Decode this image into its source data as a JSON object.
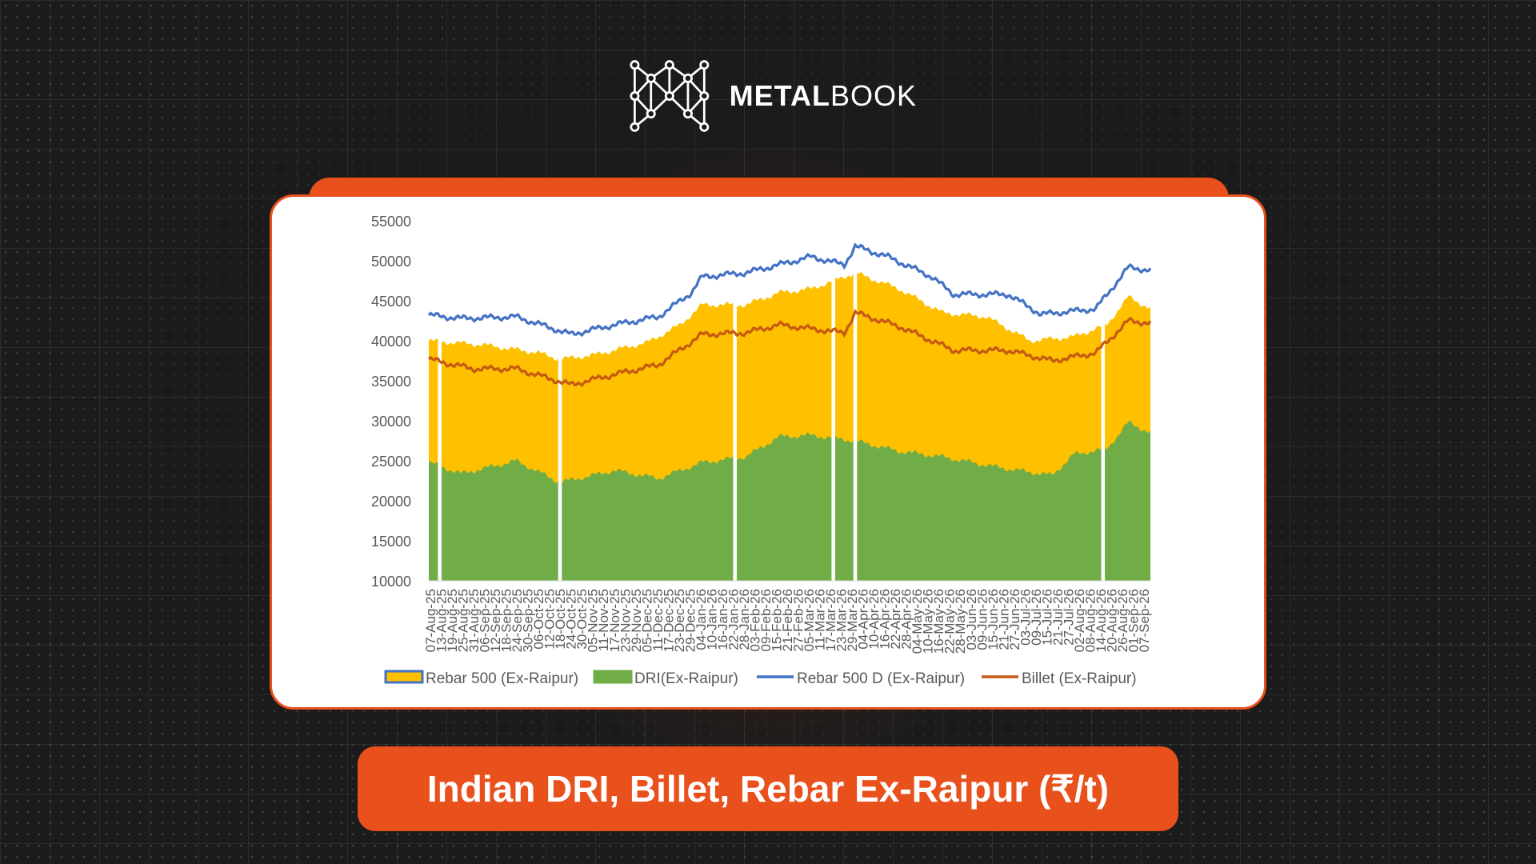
{
  "brand": {
    "name_bold": "METAL",
    "name_regular": "BOOK",
    "logo_icon": "metalbook-network-m-icon"
  },
  "colors": {
    "accent": "#e8501c",
    "rebar_area": "#FFC000",
    "dri_area": "#70AD47",
    "rebar_d_line": "#4472C4",
    "billet_line": "#C55A11"
  },
  "title": "Indian DRI, Billet, Rebar Ex-Raipur (₹/t)",
  "chart_data": {
    "type": "area",
    "x_start": "2025-08-07",
    "x_step_days": 1,
    "y_ticks": [
      "55000",
      "50000",
      "45000",
      "40000",
      "35000",
      "30000",
      "25000",
      "20000",
      "15000",
      "10000"
    ],
    "ylim": [
      10000,
      55000
    ],
    "x_tick_labels": [
      "07-Aug-25",
      "13-Aug-25",
      "19-Aug-25",
      "25-Aug-25",
      "31-Aug-25",
      "06-Sep-25",
      "12-Sep-25",
      "18-Sep-25",
      "24-Sep-25",
      "30-Sep-25",
      "06-Oct-25",
      "12-Oct-25",
      "18-Oct-25",
      "24-Oct-25",
      "30-Oct-25",
      "05-Nov-25",
      "11-Nov-25",
      "17-Nov-25",
      "23-Nov-25",
      "29-Nov-25",
      "05-Dec-25",
      "11-Dec-25",
      "17-Dec-25",
      "23-Dec-25",
      "29-Dec-25",
      "04-Jan-26",
      "10-Jan-26",
      "16-Jan-26",
      "22-Jan-26",
      "28-Jan-26",
      "03-Feb-26",
      "09-Feb-26",
      "15-Feb-26",
      "21-Feb-26",
      "27-Feb-26",
      "05-Mar-26",
      "11-Mar-26",
      "17-Mar-26",
      "23-Mar-26",
      "29-Mar-26",
      "04-Apr-26",
      "10-Apr-26",
      "16-Apr-26",
      "22-Apr-26",
      "28-Apr-26",
      "04-May-26",
      "10-May-26",
      "16-May-26",
      "22-May-26",
      "28-May-26",
      "03-Jun-26",
      "09-Jun-26",
      "15-Jun-26",
      "21-Jun-26",
      "27-Jun-26",
      "03-Jul-26",
      "09-Jul-26",
      "15-Jul-26",
      "21-Jul-26",
      "27-Jul-26",
      "02-Aug-26",
      "08-Aug-26",
      "14-Aug-26",
      "20-Aug-26",
      "26-Aug-26",
      "01-Sep-26",
      "07-Sep-26"
    ],
    "gap_dates": [
      "2025-08-13",
      "2025-10-18",
      "2026-01-22",
      "2026-03-17",
      "2026-03-29",
      "2026-08-12"
    ],
    "legend_position": "bottom",
    "series": [
      {
        "name": "Rebar 500 (Ex-Raipur)",
        "kind": "area",
        "points": [
          [
            "2025-08-07",
            40000
          ],
          [
            "2025-09-06",
            39500
          ],
          [
            "2025-10-06",
            38500
          ],
          [
            "2025-10-18",
            37700
          ],
          [
            "2025-11-05",
            38200
          ],
          [
            "2025-12-05",
            39800
          ],
          [
            "2025-12-23",
            42000
          ],
          [
            "2026-01-04",
            44500
          ],
          [
            "2026-01-28",
            44500
          ],
          [
            "2026-02-15",
            46000
          ],
          [
            "2026-03-05",
            46500
          ],
          [
            "2026-03-29",
            48500
          ],
          [
            "2026-04-22",
            46500
          ],
          [
            "2026-05-16",
            43500
          ],
          [
            "2026-06-09",
            43000
          ],
          [
            "2026-07-03",
            40000
          ],
          [
            "2026-07-27",
            40500
          ],
          [
            "2026-08-14",
            42000
          ],
          [
            "2026-08-26",
            45500
          ],
          [
            "2026-09-07",
            44000
          ]
        ]
      },
      {
        "name": "DRI(Ex-Raipur)",
        "kind": "area",
        "points": [
          [
            "2025-08-07",
            24800
          ],
          [
            "2025-08-25",
            23400
          ],
          [
            "2025-09-24",
            25000
          ],
          [
            "2025-10-18",
            22300
          ],
          [
            "2025-11-17",
            23800
          ],
          [
            "2025-12-11",
            22800
          ],
          [
            "2026-01-04",
            24800
          ],
          [
            "2026-01-28",
            25500
          ],
          [
            "2026-02-15",
            28000
          ],
          [
            "2026-03-05",
            28200
          ],
          [
            "2026-03-29",
            27500
          ],
          [
            "2026-04-22",
            26200
          ],
          [
            "2026-05-16",
            25500
          ],
          [
            "2026-06-15",
            24200
          ],
          [
            "2026-07-15",
            23200
          ],
          [
            "2026-07-27",
            25800
          ],
          [
            "2026-08-14",
            26500
          ],
          [
            "2026-08-26",
            29800
          ],
          [
            "2026-09-07",
            28500
          ]
        ]
      },
      {
        "name": "Rebar 500 D (Ex-Raipur)",
        "kind": "line",
        "points": [
          [
            "2025-08-07",
            43200
          ],
          [
            "2025-08-25",
            42800
          ],
          [
            "2025-09-24",
            43000
          ],
          [
            "2025-10-24",
            40800
          ],
          [
            "2025-11-17",
            42000
          ],
          [
            "2025-12-11",
            43000
          ],
          [
            "2025-12-29",
            46000
          ],
          [
            "2026-01-04",
            48000
          ],
          [
            "2026-01-28",
            48500
          ],
          [
            "2026-02-15",
            49500
          ],
          [
            "2026-03-05",
            50500
          ],
          [
            "2026-03-23",
            49500
          ],
          [
            "2026-03-29",
            51800
          ],
          [
            "2026-04-16",
            50500
          ],
          [
            "2026-05-10",
            48000
          ],
          [
            "2026-05-22",
            45800
          ],
          [
            "2026-06-21",
            45800
          ],
          [
            "2026-07-09",
            43300
          ],
          [
            "2026-08-08",
            44000
          ],
          [
            "2026-08-26",
            49200
          ],
          [
            "2026-09-07",
            48800
          ]
        ]
      },
      {
        "name": "Billet (Ex-Raipur)",
        "kind": "line",
        "points": [
          [
            "2025-08-07",
            37700
          ],
          [
            "2025-08-31",
            36500
          ],
          [
            "2025-09-24",
            36500
          ],
          [
            "2025-10-24",
            34500
          ],
          [
            "2025-11-17",
            35800
          ],
          [
            "2025-12-11",
            37000
          ],
          [
            "2026-01-04",
            40800
          ],
          [
            "2026-01-28",
            41000
          ],
          [
            "2026-02-15",
            42000
          ],
          [
            "2026-03-05",
            41500
          ],
          [
            "2026-03-23",
            41000
          ],
          [
            "2026-03-29",
            43500
          ],
          [
            "2026-04-22",
            41800
          ],
          [
            "2026-05-22",
            38800
          ],
          [
            "2026-06-21",
            38800
          ],
          [
            "2026-07-15",
            37500
          ],
          [
            "2026-08-08",
            38500
          ],
          [
            "2026-08-26",
            42500
          ],
          [
            "2026-09-07",
            42200
          ]
        ]
      }
    ]
  }
}
